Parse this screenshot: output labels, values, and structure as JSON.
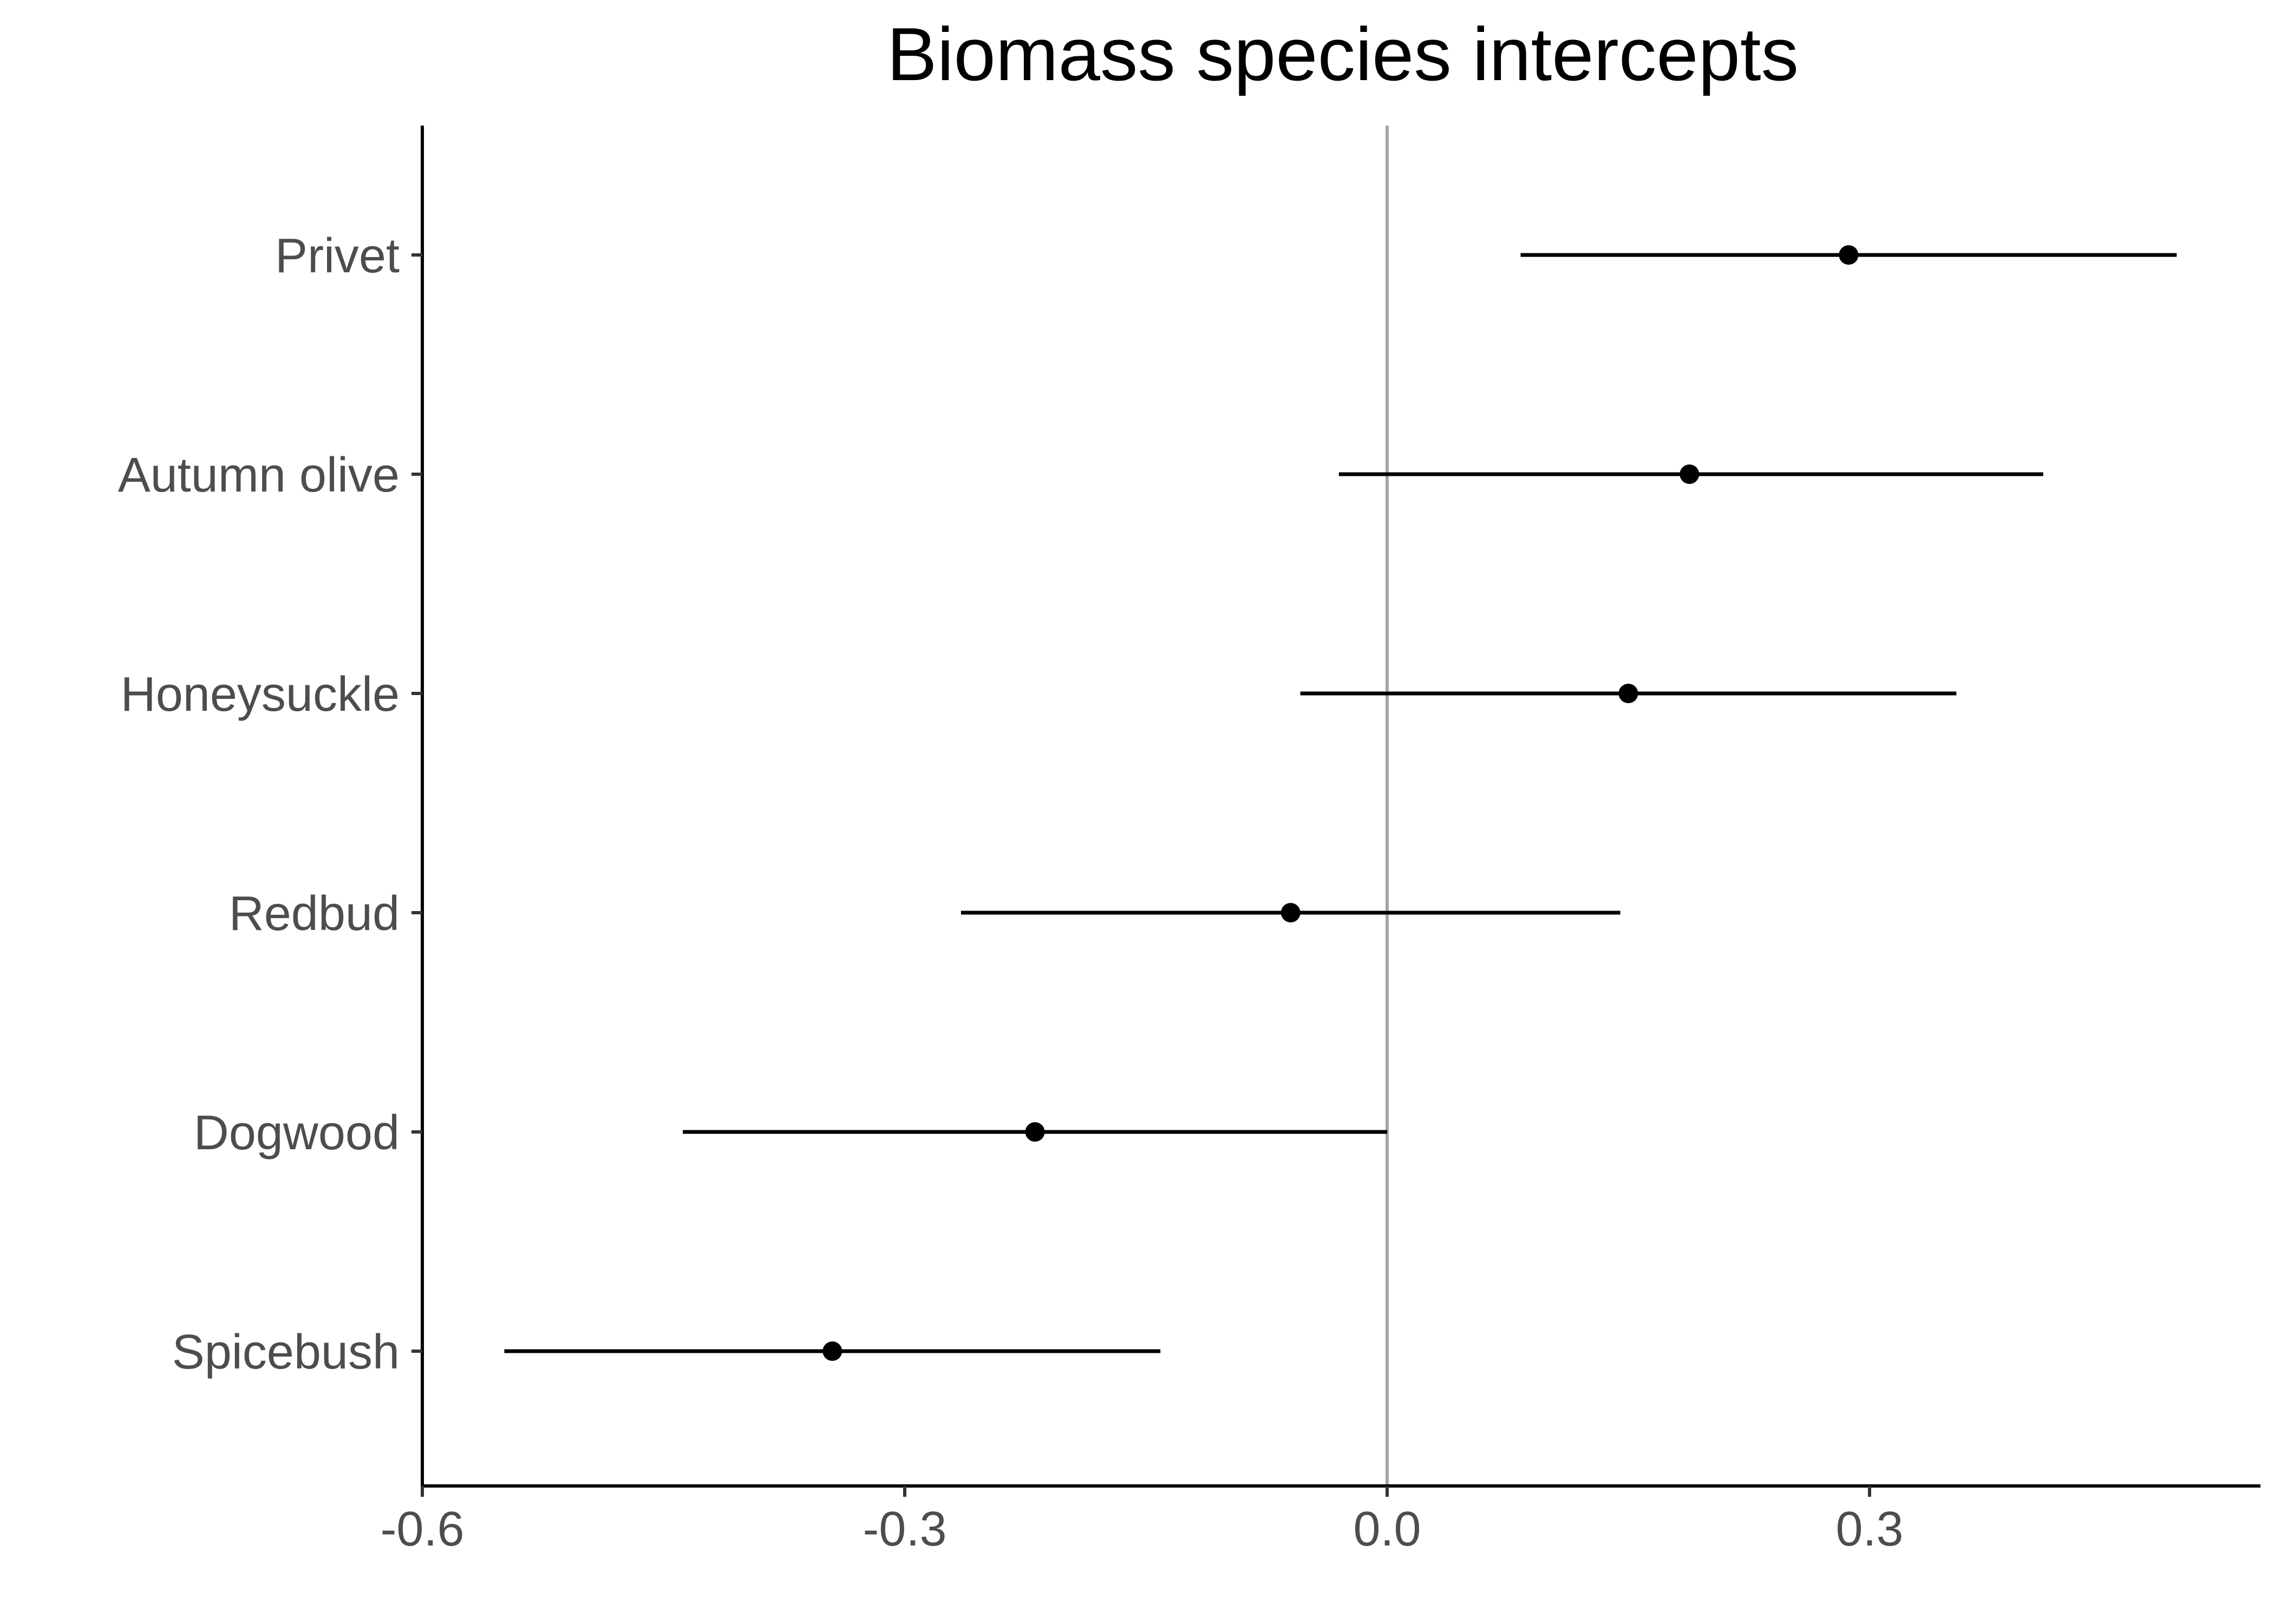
{
  "chart_data": {
    "type": "scatter",
    "subtype": "point-interval (forest plot)",
    "title": "Biomass species intercepts",
    "xlabel": "",
    "ylabel": "",
    "xlim": [
      -0.6,
      0.545
    ],
    "x_ticks": [
      -0.6,
      -0.3,
      0.0,
      0.3
    ],
    "x_tick_labels": [
      "-0.6",
      "-0.3",
      "0.0",
      "0.3"
    ],
    "reference_line": {
      "x": 0.0,
      "color": "#a6a6a6"
    },
    "grid": false,
    "legend": "none",
    "point_color": "#000000",
    "interval_color": "#000000",
    "categories": [
      "Privet",
      "Autumn olive",
      "Honeysuckle",
      "Redbud",
      "Dogwood",
      "Spicebush"
    ],
    "series": [
      {
        "points": [
          {
            "label": "Privet",
            "estimate": 0.287,
            "lower": 0.083,
            "upper": 0.491
          },
          {
            "label": "Autumn olive",
            "estimate": 0.188,
            "lower": -0.03,
            "upper": 0.408
          },
          {
            "label": "Honeysuckle",
            "estimate": 0.15,
            "lower": -0.054,
            "upper": 0.354
          },
          {
            "label": "Redbud",
            "estimate": -0.06,
            "lower": -0.265,
            "upper": 0.145
          },
          {
            "label": "Dogwood",
            "estimate": -0.219,
            "lower": -0.438,
            "upper": 0.0
          },
          {
            "label": "Spicebush",
            "estimate": -0.345,
            "lower": -0.549,
            "upper": -0.141
          }
        ]
      }
    ]
  }
}
